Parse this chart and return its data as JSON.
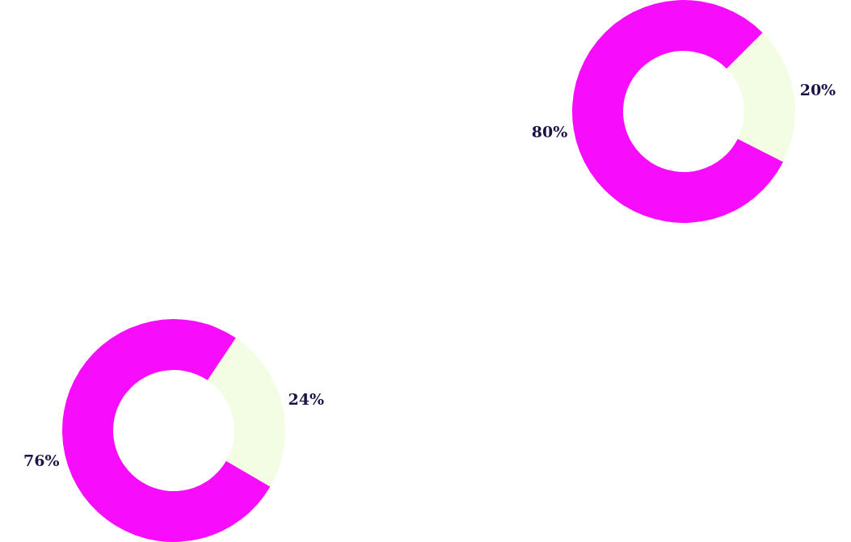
{
  "chart_data": [
    {
      "type": "donut",
      "categories": [
        null,
        null
      ],
      "values": [
        20,
        80
      ],
      "colors": [
        "#f2fde4",
        "#f70cfc"
      ],
      "value_labels": [
        "20%",
        "80%"
      ],
      "legend": false
    },
    {
      "type": "donut",
      "categories": [
        null,
        null
      ],
      "values": [
        24,
        76
      ],
      "colors": [
        "#f2fde4",
        "#f70cfc"
      ],
      "value_labels": [
        "24%",
        "76%"
      ],
      "legend": false
    }
  ]
}
